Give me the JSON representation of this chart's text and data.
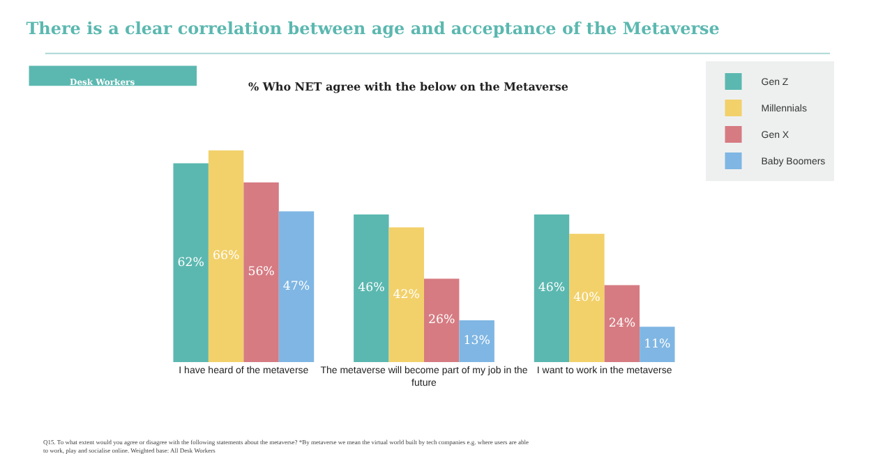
{
  "chart_data": {
    "type": "bar",
    "title": "There is a clear correlation between age and acceptance of the Metaverse",
    "subtitle": "% Who NET agree with the below on the Metaverse",
    "categories": [
      "I have heard of the metaverse",
      "The metaverse will become part of my job in the future",
      "I want to work in the metaverse"
    ],
    "series": [
      {
        "name": "Gen Z",
        "color": "#5bb8b0",
        "values": [
          62,
          46,
          46
        ],
        "value_labels": [
          "62%",
          "46%",
          "46%"
        ]
      },
      {
        "name": "Millennials",
        "color": "#f2d16b",
        "values": [
          66,
          42,
          40
        ],
        "value_labels": [
          "66%",
          "42%",
          "40%"
        ]
      },
      {
        "name": "Gen X",
        "color": "#d67b82",
        "values": [
          56,
          26,
          24
        ],
        "value_labels": [
          "56%",
          "26%",
          "24%"
        ]
      },
      {
        "name": "Baby Boomers",
        "color": "#7fb6e3",
        "values": [
          47,
          13,
          11
        ],
        "value_labels": [
          "47%",
          "13%",
          "11%"
        ]
      }
    ],
    "annotations": [
      "Desk Workers",
      "Q15. To what extent would you agree or disagree with the following statements about the metaverse? *By metaverse we mean the virtual world built by tech companies e.g. where users are able to work, play and socialise online. Weighted base: All Desk Workers"
    ],
    "legend": "top right"
  }
}
